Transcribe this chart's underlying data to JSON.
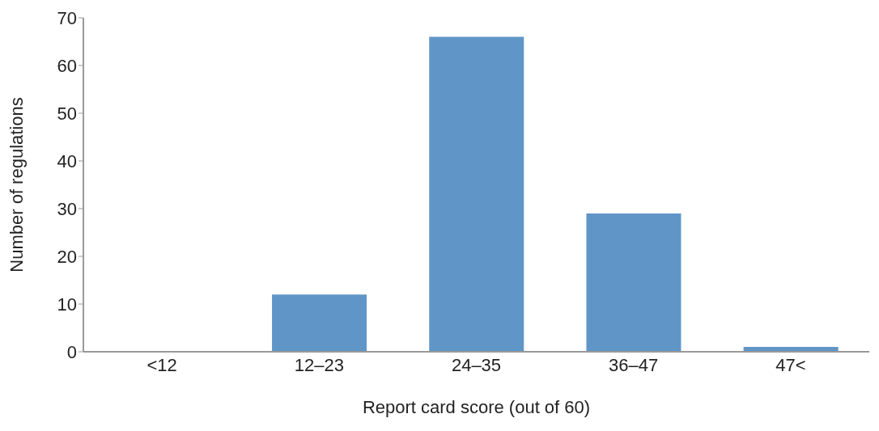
{
  "chart_data": {
    "type": "bar",
    "xlabel": "Report card score (out of 60)",
    "ylabel": "Number of regulations",
    "categories": [
      "<12",
      "12–23",
      "24–35",
      "36–47",
      "47<"
    ],
    "values": [
      0,
      12,
      66,
      29,
      1
    ],
    "color": "#6096c7",
    "ylim": [
      0,
      70
    ],
    "yticks": [
      0,
      10,
      20,
      30,
      40,
      50,
      60,
      70
    ],
    "grid": false
  }
}
